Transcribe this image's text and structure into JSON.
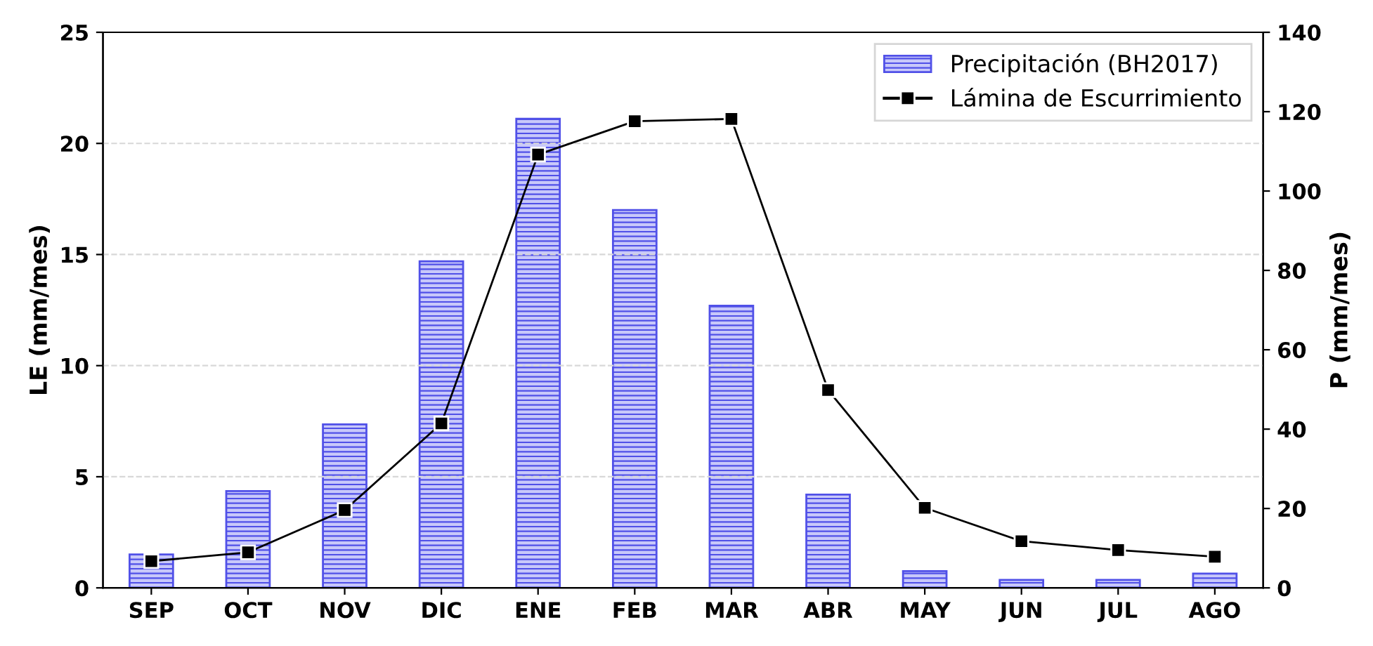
{
  "chart_data": {
    "type": "bar",
    "categories": [
      "SEP",
      "OCT",
      "NOV",
      "DIC",
      "ENE",
      "FEB",
      "MAR",
      "ABR",
      "MAY",
      "JUN",
      "JUL",
      "AGO"
    ],
    "ylabel": "LE (mm/mes)",
    "y2label": "P (mm/mes)",
    "ylim": [
      0,
      25
    ],
    "yticks": [
      0,
      5,
      10,
      15,
      20,
      25
    ],
    "y2lim": [
      0,
      140
    ],
    "y2ticks": [
      0,
      20,
      40,
      60,
      80,
      100,
      120,
      140
    ],
    "grid": "y",
    "legend": "top right",
    "series": [
      {
        "name": "Precipitación (BH2017)",
        "axis": "y2",
        "color": "#5050e8",
        "values": [
          8.4,
          24.4,
          41.2,
          82.3,
          118.2,
          95.2,
          71.1,
          23.5,
          4.2,
          2.0,
          2.0,
          3.6
        ]
      },
      {
        "name": "Lámina de Escurrimiento",
        "type": "line",
        "axis": "y",
        "color": "#000000",
        "marker": "square",
        "line_style": "solid",
        "values": [
          1.2,
          1.6,
          3.5,
          7.4,
          19.5,
          21.0,
          21.1,
          8.9,
          3.6,
          2.1,
          1.7,
          1.4
        ]
      }
    ]
  }
}
